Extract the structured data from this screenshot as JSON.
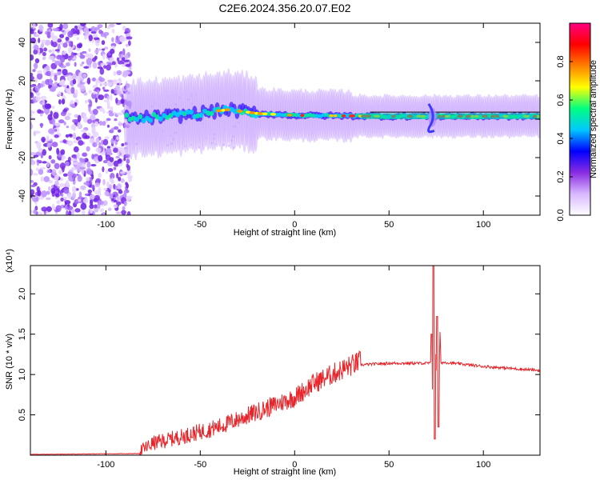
{
  "figure": {
    "title": "C2E6.2024.356.20.07.E02"
  },
  "chart_data": [
    {
      "type": "heatmap",
      "xlabel": "Height of straight line (km)",
      "ylabel": "Frequency (Hz)",
      "xlim": [
        -140,
        130
      ],
      "ylim": [
        -50,
        50
      ],
      "xticks": [
        -100,
        -50,
        0,
        50,
        100
      ],
      "yticks": [
        -40,
        -20,
        0,
        20,
        40
      ],
      "noise_region_km": [
        -140,
        -89
      ],
      "signal_region_km": [
        -89,
        130
      ],
      "signal_center_trace": [
        {
          "x": -88,
          "y": 0
        },
        {
          "x": -60,
          "y": 2
        },
        {
          "x": -35,
          "y": 5
        },
        {
          "x": -20,
          "y": 3
        },
        {
          "x": 0,
          "y": 2
        },
        {
          "x": 50,
          "y": 1.5
        },
        {
          "x": 130,
          "y": 1.5
        }
      ],
      "spike_km": 73,
      "colorbar": {
        "label": "Normalized spectral amplitude",
        "range": [
          0.0,
          1.0
        ],
        "ticks": [
          "0.0",
          "0.2",
          "0.4",
          "0.6",
          "0.8"
        ],
        "colors": [
          "#ffffff",
          "#d8b8ff",
          "#8a2be2",
          "#0000ff",
          "#00c8ff",
          "#00ff80",
          "#ffff00",
          "#ff8000",
          "#ff0000",
          "#ff0080"
        ]
      },
      "grid": false
    },
    {
      "type": "line",
      "xlabel": "Height of straight line (km)",
      "ylabel": "SNR (10 * v/v)",
      "y_multiplier": "(x10⁴)",
      "xlim": [
        -140,
        130
      ],
      "ylim": [
        0,
        2.35
      ],
      "xticks": [
        -100,
        -50,
        0,
        50,
        100
      ],
      "yticks": [
        "0.5",
        "1.0",
        "1.5",
        "2.0"
      ],
      "line_color": "#e8252a",
      "series_envelope": [
        {
          "x": -140,
          "y": 0.01
        },
        {
          "x": -82,
          "y": 0.02
        },
        {
          "x": -75,
          "y": 0.12
        },
        {
          "x": -60,
          "y": 0.2
        },
        {
          "x": -40,
          "y": 0.32
        },
        {
          "x": -20,
          "y": 0.5
        },
        {
          "x": 0,
          "y": 0.68
        },
        {
          "x": 10,
          "y": 0.85
        },
        {
          "x": 25,
          "y": 1.02
        },
        {
          "x": 35,
          "y": 1.12
        },
        {
          "x": 50,
          "y": 1.14
        },
        {
          "x": 70,
          "y": 1.14
        },
        {
          "x": 80,
          "y": 1.15
        },
        {
          "x": 100,
          "y": 1.1
        },
        {
          "x": 130,
          "y": 1.05
        }
      ],
      "spikes": [
        {
          "x": 73.5,
          "y": 2.35
        },
        {
          "x": 74.2,
          "y": 0.2
        },
        {
          "x": 75.5,
          "y": 1.72
        },
        {
          "x": 76.3,
          "y": 0.35
        },
        {
          "x": 72.5,
          "y": 1.5
        }
      ],
      "grid": false
    }
  ]
}
